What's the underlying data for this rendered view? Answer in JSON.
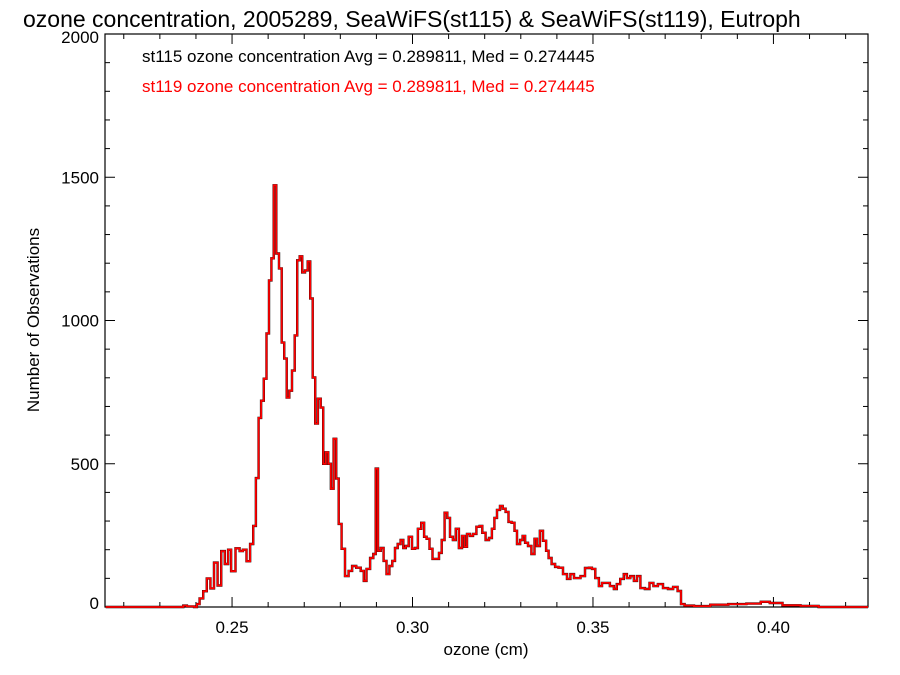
{
  "chart_data": {
    "type": "line",
    "style": "histogram-step",
    "title": "ozone concentration, 2005289, SeaWiFS(st115) & SeaWiFS(st119), Eutroph",
    "xlabel": "ozone (cm)",
    "ylabel": "Number of Observations",
    "xlim": [
      0.2148,
      0.4262
    ],
    "ylim": [
      0,
      2000
    ],
    "xticks": [
      0.25,
      0.3,
      0.35,
      0.4
    ],
    "xtick_labels": [
      "0.25",
      "0.30",
      "0.35",
      "0.40"
    ],
    "yticks": [
      0,
      500,
      1000,
      1500,
      2000
    ],
    "ytick_labels": [
      "0",
      "500",
      "1000",
      "1500",
      "2000"
    ],
    "grid": false,
    "legend": [
      {
        "text": "st115 ozone concentration Avg = 0.289811, Med = 0.274445",
        "color": "#000000"
      },
      {
        "text": "st119 ozone concentration Avg = 0.289811, Med = 0.274445",
        "color": "#ff0000"
      }
    ],
    "legend_placement": "top-left",
    "x": [
      0.215,
      0.236,
      0.237,
      0.238,
      0.239,
      0.24,
      0.2405,
      0.2415,
      0.2425,
      0.2435,
      0.2445,
      0.2455,
      0.2465,
      0.2475,
      0.2485,
      0.2493,
      0.2502,
      0.2517,
      0.2525,
      0.2535,
      0.2545,
      0.2555,
      0.2562,
      0.257,
      0.2577,
      0.2584,
      0.2592,
      0.2599,
      0.2606,
      0.2612,
      0.2619,
      0.2626,
      0.2634,
      0.2641,
      0.2648,
      0.2655,
      0.2662,
      0.267,
      0.2677,
      0.2684,
      0.2691,
      0.2698,
      0.2706,
      0.2713,
      0.272,
      0.2727,
      0.2734,
      0.2742,
      0.2749,
      0.2756,
      0.2763,
      0.277,
      0.2778,
      0.2785,
      0.2792,
      0.2799,
      0.2808,
      0.2818,
      0.2828,
      0.2837,
      0.2851,
      0.2862,
      0.2868,
      0.2877,
      0.2888,
      0.2895,
      0.2901,
      0.2908,
      0.2916,
      0.2924,
      0.2932,
      0.294,
      0.2948,
      0.2955,
      0.2963,
      0.2971,
      0.2978,
      0.2985,
      0.2994,
      0.3003,
      0.3011,
      0.3019,
      0.3029,
      0.3035,
      0.3043,
      0.3051,
      0.306,
      0.307,
      0.3077,
      0.3085,
      0.3093,
      0.31,
      0.3108,
      0.3116,
      0.3124,
      0.3133,
      0.3141,
      0.3147,
      0.3155,
      0.3163,
      0.3172,
      0.3182,
      0.319,
      0.3197,
      0.3208,
      0.3216,
      0.3224,
      0.323,
      0.3238,
      0.3247,
      0.3253,
      0.3263,
      0.3269,
      0.328,
      0.3285,
      0.3294,
      0.3302,
      0.3308,
      0.3316,
      0.3324,
      0.3335,
      0.3341,
      0.3349,
      0.3357,
      0.3366,
      0.3374,
      0.338,
      0.3391,
      0.3399,
      0.341,
      0.3424,
      0.3432,
      0.3443,
      0.3452,
      0.346,
      0.3471,
      0.3485,
      0.3493,
      0.3501,
      0.3512,
      0.3521,
      0.3529,
      0.354,
      0.3554,
      0.3562,
      0.357,
      0.3581,
      0.359,
      0.3598,
      0.3609,
      0.3618,
      0.3626,
      0.3637,
      0.3651,
      0.3662,
      0.3673,
      0.3687,
      0.3701,
      0.3715,
      0.3729,
      0.374,
      0.3748,
      0.376,
      0.38,
      0.385,
      0.39,
      0.395,
      0.398,
      0.4,
      0.405,
      0.41,
      0.415,
      0.4262
    ],
    "series": [
      {
        "name": "st115",
        "color": "#000000",
        "values": [
          0,
          0,
          5,
          2,
          2,
          0,
          10,
          30,
          55,
          100,
          65,
          155,
          75,
          195,
          150,
          200,
          125,
          205,
          195,
          200,
          160,
          220,
          283,
          450,
          660,
          720,
          797,
          955,
          1140,
          1217,
          1472,
          1234,
          1182,
          923,
          867,
          731,
          755,
          825,
          948,
          1210,
          1224,
          1168,
          1175,
          1206,
          1077,
          801,
          640,
          727,
          696,
          500,
          540,
          500,
          413,
          587,
          448,
          290,
          203,
          108,
          126,
          143,
          137,
          126,
          91,
          133,
          171,
          185,
          483,
          196,
          206,
          161,
          115,
          143,
          161,
          206,
          220,
          234,
          206,
          213,
          245,
          203,
          206,
          273,
          294,
          245,
          238,
          203,
          168,
          168,
          189,
          234,
          329,
          311,
          245,
          234,
          273,
          206,
          248,
          210,
          255,
          248,
          255,
          280,
          283,
          259,
          234,
          241,
          273,
          311,
          339,
          353,
          343,
          332,
          297,
          294,
          266,
          220,
          234,
          248,
          224,
          213,
          185,
          238,
          213,
          266,
          231,
          196,
          171,
          150,
          140,
          137,
          115,
          98,
          115,
          101,
          101,
          108,
          136,
          137,
          133,
          101,
          73,
          84,
          84,
          73,
          63,
          80,
          98,
          115,
          101,
          108,
          91,
          108,
          66,
          63,
          84,
          73,
          80,
          66,
          63,
          70,
          56,
          10,
          5,
          3,
          8,
          10,
          12,
          18,
          14,
          6,
          4,
          0,
          0
        ]
      },
      {
        "name": "st119",
        "color": "#ff0000",
        "values": [
          0,
          0,
          5,
          2,
          2,
          0,
          10,
          30,
          55,
          100,
          65,
          155,
          75,
          195,
          150,
          200,
          125,
          205,
          195,
          200,
          160,
          220,
          283,
          450,
          660,
          720,
          797,
          955,
          1140,
          1217,
          1472,
          1234,
          1182,
          923,
          867,
          731,
          755,
          825,
          948,
          1210,
          1224,
          1168,
          1175,
          1206,
          1077,
          801,
          640,
          727,
          696,
          500,
          540,
          500,
          413,
          587,
          448,
          290,
          203,
          108,
          126,
          143,
          137,
          126,
          91,
          133,
          171,
          185,
          483,
          196,
          206,
          161,
          115,
          143,
          161,
          206,
          220,
          234,
          206,
          213,
          245,
          203,
          206,
          273,
          294,
          245,
          238,
          203,
          168,
          168,
          189,
          234,
          329,
          311,
          245,
          234,
          273,
          206,
          248,
          210,
          255,
          248,
          255,
          280,
          283,
          259,
          234,
          241,
          273,
          311,
          339,
          353,
          343,
          332,
          297,
          294,
          266,
          220,
          234,
          248,
          224,
          213,
          185,
          238,
          213,
          266,
          231,
          196,
          171,
          150,
          140,
          137,
          115,
          98,
          115,
          101,
          101,
          108,
          136,
          137,
          133,
          101,
          73,
          84,
          84,
          73,
          63,
          80,
          98,
          115,
          101,
          108,
          91,
          108,
          66,
          63,
          84,
          73,
          80,
          66,
          63,
          70,
          56,
          10,
          5,
          3,
          8,
          10,
          12,
          18,
          14,
          6,
          4,
          0,
          0
        ]
      }
    ]
  }
}
